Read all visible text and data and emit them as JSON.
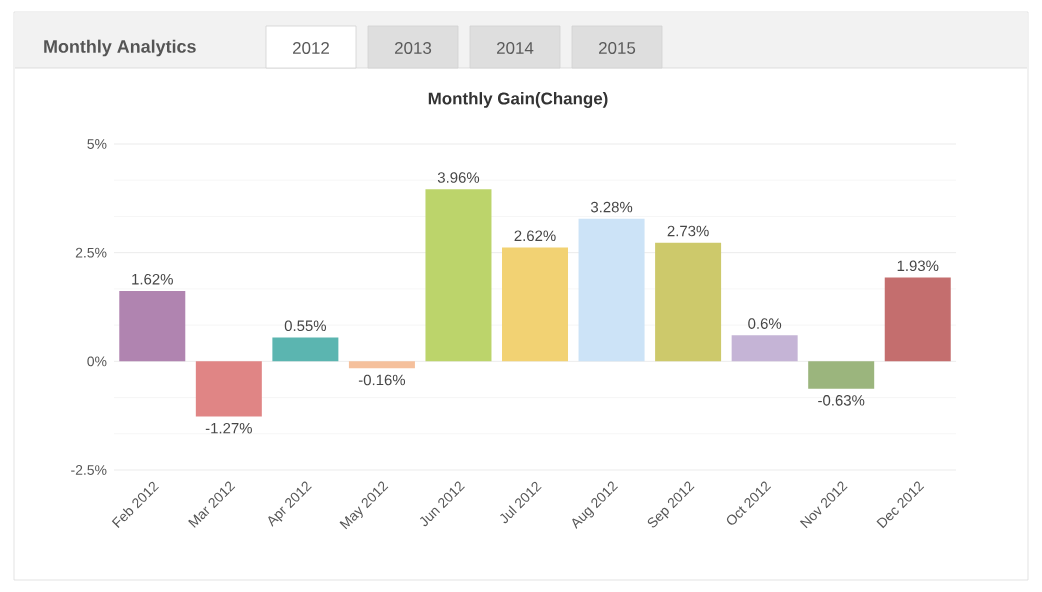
{
  "chart_data": {
    "type": "bar",
    "title": "Monthly Gain(Change)",
    "annotations": [
      "Monthly Analytics",
      "2012",
      "2013",
      "2014",
      "2015"
    ],
    "categories": [
      "Feb 2012",
      "Mar 2012",
      "Apr 2012",
      "May 2012",
      "Jun 2012",
      "Jul 2012",
      "Aug 2012",
      "Sep 2012",
      "Oct 2012",
      "Nov 2012",
      "Dec 2012"
    ],
    "values": [
      1.62,
      -1.27,
      0.55,
      -0.16,
      3.96,
      2.62,
      3.28,
      2.73,
      0.6,
      -0.63,
      1.93
    ],
    "value_labels": [
      "1.62%",
      "-1.27%",
      "0.55%",
      "-0.16%",
      "3.96%",
      "2.62%",
      "3.28%",
      "2.73%",
      "0.6%",
      "-0.63%",
      "1.93%"
    ],
    "colors": [
      "#b084b0",
      "#e08585",
      "#5bb5b0",
      "#f5c09c",
      "#bcd46b",
      "#f2d273",
      "#cce3f7",
      "#cdc96b",
      "#c5b4d6",
      "#9bb57d",
      "#c46e6e"
    ],
    "ylim": [
      -2.5,
      5
    ],
    "yticks": [
      {
        "value": -2.5,
        "label": "-2.5%"
      },
      {
        "value": 0,
        "label": "0%"
      },
      {
        "value": 2.5,
        "label": "2.5%"
      },
      {
        "value": 5,
        "label": "5%"
      }
    ],
    "grid": "y"
  }
}
